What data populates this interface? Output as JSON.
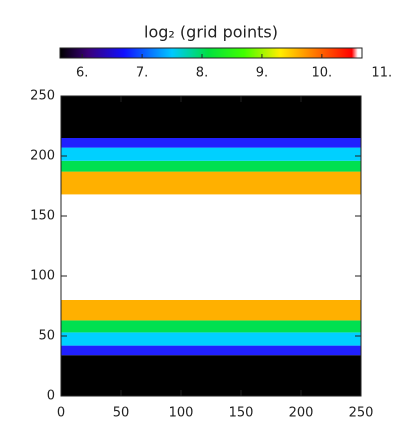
{
  "chart_data": {
    "type": "heatmap",
    "title": "log₂ (grid points)",
    "colorbar": {
      "clim": [
        5.63,
        10.67
      ],
      "ticks": [
        {
          "value": 6,
          "label": "6."
        },
        {
          "value": 7,
          "label": "7."
        },
        {
          "value": 8,
          "label": "8."
        },
        {
          "value": 9,
          "label": "9."
        },
        {
          "value": 10,
          "label": "10."
        },
        {
          "value": 11,
          "label": "11."
        }
      ],
      "colormap": [
        {
          "value": 5.63,
          "color": "#000000"
        },
        {
          "value": 6.1,
          "color": "#3a007a"
        },
        {
          "value": 6.7,
          "color": "#1010ff"
        },
        {
          "value": 7.5,
          "color": "#00c8ff"
        },
        {
          "value": 8.1,
          "color": "#00e040"
        },
        {
          "value": 8.7,
          "color": "#40ff00"
        },
        {
          "value": 9.3,
          "color": "#ffee00"
        },
        {
          "value": 9.8,
          "color": "#ff8800"
        },
        {
          "value": 10.5,
          "color": "#ff0000"
        },
        {
          "value": 10.6,
          "color": "#ffffff"
        }
      ]
    },
    "bands": [
      {
        "y": [
          0,
          34
        ],
        "value": 5.5,
        "color": "#000000"
      },
      {
        "y": [
          34,
          42
        ],
        "value": 7.0,
        "color": "#2020ff"
      },
      {
        "y": [
          42,
          53
        ],
        "value": 7.6,
        "color": "#00d0ff"
      },
      {
        "y": [
          53,
          63
        ],
        "value": 8.3,
        "color": "#00e050"
      },
      {
        "y": [
          63,
          80
        ],
        "value": 9.7,
        "color": "#ffb000"
      },
      {
        "y": [
          80,
          168
        ],
        "value": 11,
        "color": "#ffffff"
      },
      {
        "y": [
          168,
          187
        ],
        "value": 9.7,
        "color": "#ffb000"
      },
      {
        "y": [
          187,
          196
        ],
        "value": 8.3,
        "color": "#00e050"
      },
      {
        "y": [
          196,
          207
        ],
        "value": 7.6,
        "color": "#00d0ff"
      },
      {
        "y": [
          207,
          215
        ],
        "value": 7.0,
        "color": "#2020ff"
      },
      {
        "y": [
          215,
          250
        ],
        "value": 5.5,
        "color": "#000000"
      }
    ],
    "xlim": [
      0,
      250
    ],
    "ylim": [
      0,
      250
    ],
    "xticks": [
      0,
      50,
      100,
      150,
      200,
      250
    ],
    "yticks": [
      0,
      50,
      100,
      150,
      200,
      250
    ]
  }
}
